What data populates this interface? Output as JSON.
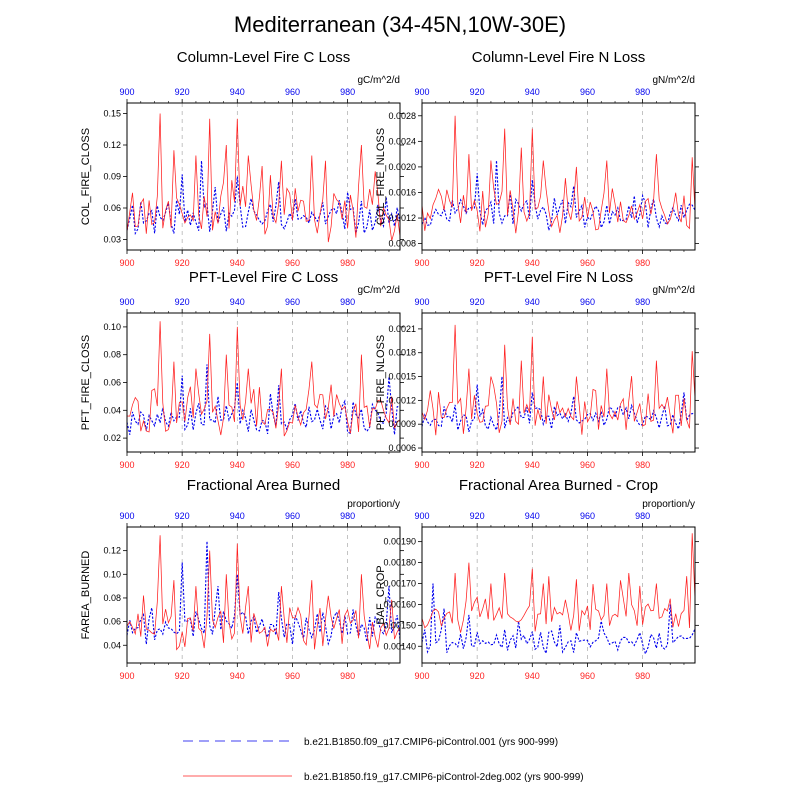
{
  "title": "Mediterranean (34-45N,10W-30E)",
  "colors": {
    "ens1": "#0000ee",
    "ens2": "#ff2020",
    "grid": "#aaaaaa"
  },
  "legend": [
    {
      "label": "b.e21.B1850.f09_g17.CMIP6-piControl.001 (yrs 900-999)",
      "color": "#0000ee",
      "style": "dashed"
    },
    {
      "label": "b.e21.B1850.f19_g17.CMIP6-piControl-2deg.002 (yrs 900-999)",
      "color": "#ff2020",
      "style": "solid"
    }
  ],
  "chart_data": [
    {
      "type": "line",
      "title": "Column-Level Fire C Loss",
      "ylabel": "COL_FIRE_CLOSS",
      "units": "gC/m^2/d",
      "xlim": [
        900,
        999
      ],
      "ylim": [
        0.02,
        0.16
      ],
      "yticks": [
        0.03,
        0.06,
        0.09,
        0.12,
        0.15
      ],
      "ytick_labels": [
        "0.03",
        "0.06",
        "0.09",
        "0.12",
        "0.15"
      ],
      "xticks": [
        900,
        920,
        940,
        960,
        980
      ],
      "top_xticks": [
        900,
        920,
        940,
        960,
        980
      ],
      "series": [
        {
          "name": "b.e21.B1850.f09_g17.CMIP6-piControl.001",
          "base": 0.052,
          "amp": 0.013,
          "spike": 0.01,
          "seed": 11,
          "peaks": [
            [
              920,
              0.092
            ],
            [
              927,
              0.105
            ],
            [
              932,
              0.08
            ],
            [
              940,
              0.09
            ],
            [
              955,
              0.085
            ],
            [
              980,
              0.075
            ]
          ]
        },
        {
          "name": "b.e21.B1850.f19_g17.CMIP6-piControl-2deg.002",
          "base": 0.056,
          "amp": 0.02,
          "spike": 0.025,
          "seed": 23,
          "peaks": [
            [
              912,
              0.15
            ],
            [
              917,
              0.115
            ],
            [
              925,
              0.11
            ],
            [
              930,
              0.145
            ],
            [
              936,
              0.12
            ],
            [
              940,
              0.145
            ],
            [
              944,
              0.11
            ],
            [
              949,
              0.1
            ],
            [
              956,
              0.105
            ],
            [
              967,
              0.11
            ],
            [
              972,
              0.105
            ],
            [
              985,
              0.12
            ],
            [
              990,
              0.095
            ]
          ]
        }
      ]
    },
    {
      "type": "line",
      "title": "Column-Level Fire N Loss",
      "ylabel": "COL_FIRE_NLOSS",
      "units": "gN/m^2/d",
      "xlim": [
        900,
        999
      ],
      "ylim": [
        0.0007,
        0.003
      ],
      "yticks": [
        0.0008,
        0.0012,
        0.0016,
        0.002,
        0.0024,
        0.0028
      ],
      "ytick_labels": [
        "0.0008",
        "0.0012",
        "0.0016",
        "0.0020",
        "0.0024",
        "0.0028"
      ],
      "xticks": [
        900,
        920,
        940,
        960,
        980
      ],
      "top_xticks": [
        900,
        920,
        940,
        960,
        980
      ],
      "series": [
        {
          "name": "b.e21.B1850.f09_g17.CMIP6-piControl.001",
          "base": 0.00125,
          "amp": 0.00018,
          "spike": 0.00015,
          "seed": 37,
          "peaks": [
            [
              920,
              0.0019
            ],
            [
              927,
              0.0021
            ],
            [
              932,
              0.0016
            ],
            [
              940,
              0.0018
            ],
            [
              955,
              0.0017
            ],
            [
              980,
              0.00155
            ]
          ]
        },
        {
          "name": "b.e21.B1850.f19_g17.CMIP6-piControl-2deg.002",
          "base": 0.0013,
          "amp": 0.00028,
          "spike": 0.0003,
          "seed": 41,
          "peaks": [
            [
              912,
              0.0028
            ],
            [
              917,
              0.0022
            ],
            [
              925,
              0.0021
            ],
            [
              930,
              0.0026
            ],
            [
              936,
              0.0023
            ],
            [
              940,
              0.0026
            ],
            [
              944,
              0.0021
            ],
            [
              956,
              0.002
            ],
            [
              967,
              0.0021
            ],
            [
              985,
              0.0022
            ],
            [
              998,
              0.00215
            ]
          ]
        }
      ]
    },
    {
      "type": "line",
      "title": "PFT-Level Fire C Loss",
      "ylabel": "PFT_FIRE_CLOSS",
      "units": "gC/m^2/d",
      "xlim": [
        900,
        999
      ],
      "ylim": [
        0.01,
        0.11
      ],
      "yticks": [
        0.02,
        0.04,
        0.06,
        0.08,
        0.1
      ],
      "ytick_labels": [
        "0.02",
        "0.04",
        "0.06",
        "0.08",
        "0.10"
      ],
      "xticks": [
        900,
        920,
        940,
        960,
        980
      ],
      "top_xticks": [
        900,
        920,
        940,
        960,
        980
      ],
      "series": [
        {
          "name": "b.e21.B1850.f09_g17.CMIP6-piControl.001",
          "base": 0.034,
          "amp": 0.009,
          "spike": 0.008,
          "seed": 53,
          "peaks": [
            [
              920,
              0.065
            ],
            [
              929,
              0.073
            ],
            [
              933,
              0.05
            ],
            [
              940,
              0.06
            ],
            [
              955,
              0.058
            ],
            [
              995,
              0.064
            ]
          ]
        },
        {
          "name": "b.e21.B1850.f19_g17.CMIP6-piControl-2deg.002",
          "base": 0.038,
          "amp": 0.013,
          "spike": 0.016,
          "seed": 59,
          "peaks": [
            [
              912,
              0.104
            ],
            [
              917,
              0.075
            ],
            [
              925,
              0.07
            ],
            [
              930,
              0.095
            ],
            [
              936,
              0.08
            ],
            [
              940,
              0.1
            ],
            [
              944,
              0.07
            ],
            [
              956,
              0.07
            ],
            [
              967,
              0.075
            ],
            [
              985,
              0.08
            ]
          ]
        }
      ]
    },
    {
      "type": "line",
      "title": "PFT-Level Fire N Loss",
      "ylabel": "PFT_FIRE_NLOSS",
      "units": "gN/m^2/d",
      "xlim": [
        900,
        999
      ],
      "ylim": [
        0.00055,
        0.0023
      ],
      "yticks": [
        0.0006,
        0.0009,
        0.0012,
        0.0015,
        0.0018,
        0.0021
      ],
      "ytick_labels": [
        "0.0006",
        "0.0009",
        "0.0012",
        "0.0015",
        "0.0018",
        "0.0021"
      ],
      "xticks": [
        900,
        920,
        940,
        960,
        980
      ],
      "top_xticks": [
        900,
        920,
        940,
        960,
        980
      ],
      "series": [
        {
          "name": "b.e21.B1850.f09_g17.CMIP6-piControl.001",
          "base": 0.00098,
          "amp": 0.00012,
          "spike": 0.0001,
          "seed": 67,
          "peaks": [
            [
              920,
              0.0014
            ],
            [
              929,
              0.0015
            ],
            [
              940,
              0.0013
            ],
            [
              955,
              0.00125
            ],
            [
              995,
              0.0013
            ]
          ]
        },
        {
          "name": "b.e21.B1850.f19_g17.CMIP6-piControl-2deg.002",
          "base": 0.00105,
          "amp": 0.0002,
          "spike": 0.00022,
          "seed": 71,
          "peaks": [
            [
              912,
              0.00215
            ],
            [
              917,
              0.0016
            ],
            [
              925,
              0.0015
            ],
            [
              930,
              0.0019
            ],
            [
              936,
              0.0017
            ],
            [
              940,
              0.002
            ],
            [
              944,
              0.0015
            ],
            [
              956,
              0.0015
            ],
            [
              967,
              0.0016
            ],
            [
              985,
              0.0017
            ],
            [
              998,
              0.00182
            ]
          ]
        }
      ]
    },
    {
      "type": "line",
      "title": "Fractional Area Burned",
      "ylabel": "FAREA_BURNED",
      "units": "proportion/y",
      "xlim": [
        900,
        999
      ],
      "ylim": [
        0.025,
        0.14
      ],
      "yticks": [
        0.04,
        0.06,
        0.08,
        0.1,
        0.12
      ],
      "ytick_labels": [
        "0.04",
        "0.06",
        "0.08",
        "0.10",
        "0.12"
      ],
      "xticks": [
        900,
        920,
        940,
        960,
        980
      ],
      "top_xticks": [
        900,
        920,
        940,
        960,
        980
      ],
      "series": [
        {
          "name": "b.e21.B1850.f09_g17.CMIP6-piControl.001",
          "base": 0.056,
          "amp": 0.011,
          "spike": 0.012,
          "seed": 79,
          "peaks": [
            [
              920,
              0.11
            ],
            [
              929,
              0.128
            ],
            [
              933,
              0.09
            ],
            [
              940,
              0.1
            ],
            [
              955,
              0.085
            ],
            [
              995,
              0.09
            ]
          ]
        },
        {
          "name": "b.e21.B1850.f19_g17.CMIP6-piControl-2deg.002",
          "base": 0.056,
          "amp": 0.015,
          "spike": 0.02,
          "seed": 83,
          "peaks": [
            [
              912,
              0.133
            ],
            [
              917,
              0.095
            ],
            [
              925,
              0.09
            ],
            [
              930,
              0.12
            ],
            [
              936,
              0.1
            ],
            [
              940,
              0.126
            ],
            [
              944,
              0.09
            ],
            [
              956,
              0.09
            ],
            [
              967,
              0.095
            ],
            [
              985,
              0.1
            ]
          ]
        }
      ]
    },
    {
      "type": "line",
      "title": "Fractional Area Burned - Crop",
      "ylabel": "BAF_CROP",
      "units": "proportion/y",
      "xlim": [
        900,
        999
      ],
      "ylim": [
        0.00132,
        0.00197
      ],
      "yticks": [
        0.0014,
        0.0015,
        0.0016,
        0.0017,
        0.0018,
        0.0019
      ],
      "ytick_labels": [
        "0.00140",
        "0.00150",
        "0.00160",
        "0.00170",
        "0.00180",
        "0.00190"
      ],
      "xticks": [
        900,
        920,
        940,
        960,
        980
      ],
      "top_xticks": [
        900,
        920,
        940,
        960,
        980
      ],
      "series": [
        {
          "name": "b.e21.B1850.f09_g17.CMIP6-piControl.001",
          "base": 0.00142,
          "amp": 4e-05,
          "spike": 5e-05,
          "seed": 89,
          "peaks": [
            [
              904,
              0.0017
            ],
            [
              908,
              0.00158
            ],
            [
              917,
              0.00155
            ],
            [
              935,
              0.00152
            ],
            [
              950,
              0.0015
            ],
            [
              965,
              0.00152
            ],
            [
              990,
              0.0016
            ]
          ]
        },
        {
          "name": "b.e21.B1850.f19_g17.CMIP6-piControl-2deg.002",
          "base": 0.00155,
          "amp": 6e-05,
          "spike": 0.00012,
          "seed": 97,
          "peaks": [
            [
              912,
              0.00175
            ],
            [
              917,
              0.0018
            ],
            [
              925,
              0.0017
            ],
            [
              930,
              0.00175
            ],
            [
              940,
              0.00177
            ],
            [
              944,
              0.0017
            ],
            [
              956,
              0.00172
            ],
            [
              967,
              0.0017
            ],
            [
              975,
              0.00175
            ],
            [
              985,
              0.0017
            ],
            [
              998,
              0.00194
            ]
          ]
        }
      ]
    }
  ]
}
